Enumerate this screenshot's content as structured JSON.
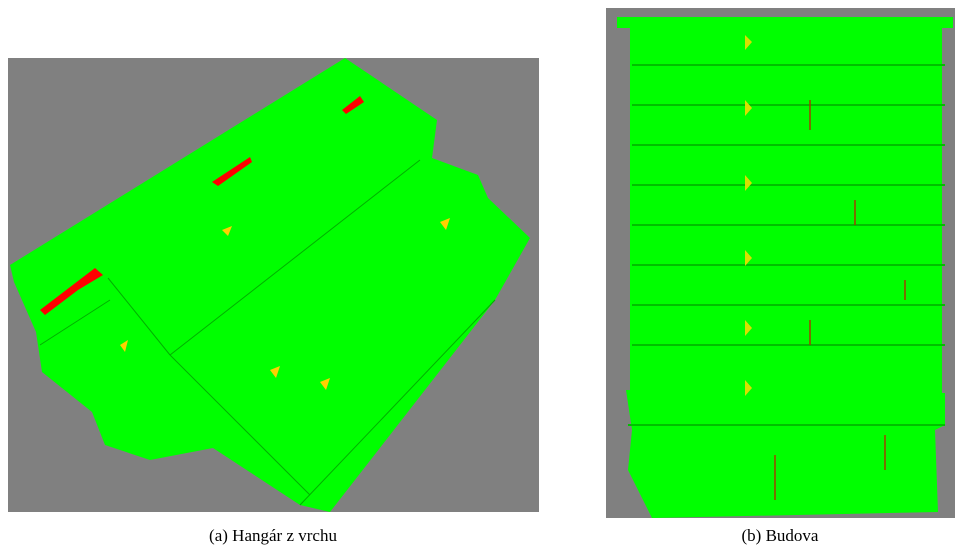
{
  "figures": [
    {
      "caption": "(a) Hangár z vrchu"
    },
    {
      "caption": "(b) Budova"
    }
  ]
}
